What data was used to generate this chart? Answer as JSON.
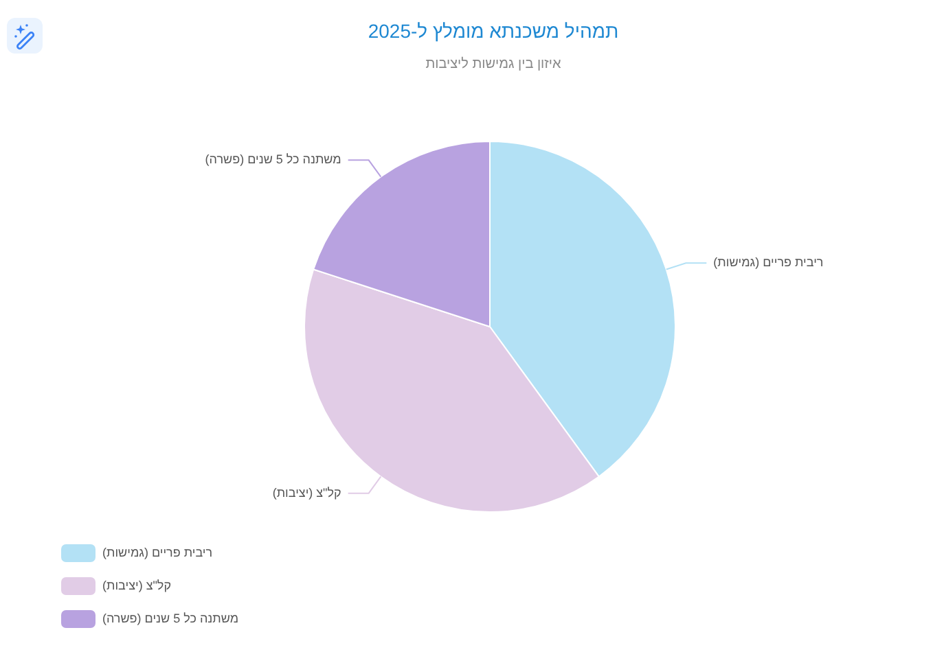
{
  "chart_data": {
    "type": "pie",
    "title": "תמהיל משכנתא מומלץ ל-2025",
    "subtitle": "איזון בין גמישות ליציבות",
    "categories": [
      "ריבית פריים (גמישות)",
      "קל\"צ (יציבות)",
      "משתנה כל 5 שנים (פשרה)"
    ],
    "values": [
      40,
      40,
      20
    ],
    "colors": [
      "#b3e1f5",
      "#e1cce6",
      "#b8a2e0"
    ],
    "legend": "bottom left"
  }
}
